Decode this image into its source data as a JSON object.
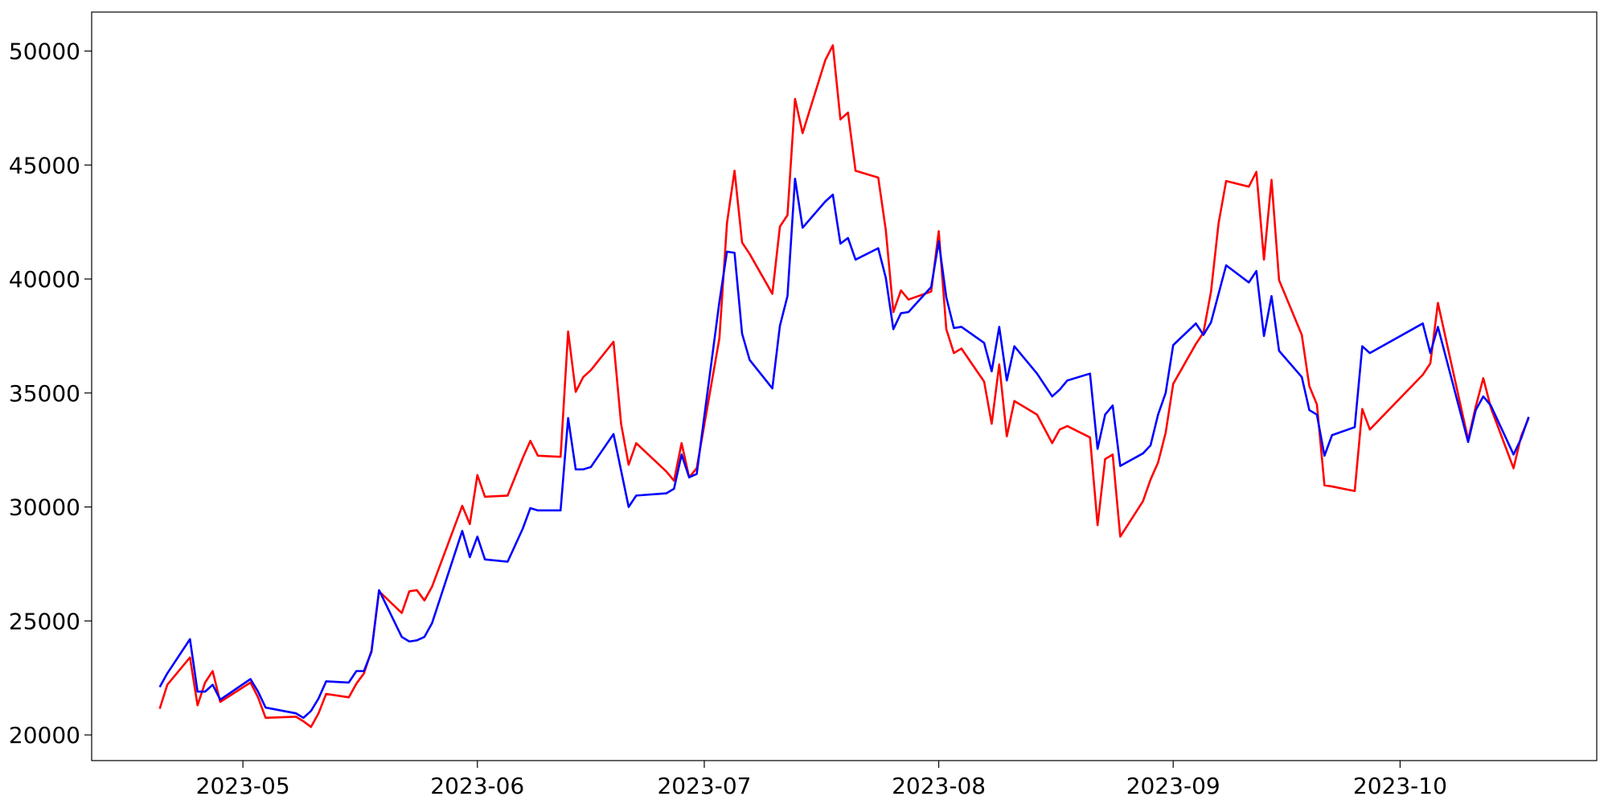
{
  "chart_data": {
    "type": "line",
    "x": [
      "2023-04-20",
      "2023-04-21",
      "2023-04-24",
      "2023-04-25",
      "2023-04-26",
      "2023-04-27",
      "2023-04-28",
      "2023-05-02",
      "2023-05-03",
      "2023-05-04",
      "2023-05-08",
      "2023-05-09",
      "2023-05-10",
      "2023-05-11",
      "2023-05-12",
      "2023-05-15",
      "2023-05-16",
      "2023-05-17",
      "2023-05-18",
      "2023-05-19",
      "2023-05-22",
      "2023-05-23",
      "2023-05-24",
      "2023-05-25",
      "2023-05-26",
      "2023-05-30",
      "2023-05-31",
      "2023-06-01",
      "2023-06-02",
      "2023-06-05",
      "2023-06-07",
      "2023-06-08",
      "2023-06-09",
      "2023-06-12",
      "2023-06-13",
      "2023-06-14",
      "2023-06-15",
      "2023-06-16",
      "2023-06-19",
      "2023-06-20",
      "2023-06-21",
      "2023-06-22",
      "2023-06-26",
      "2023-06-27",
      "2023-06-28",
      "2023-06-29",
      "2023-06-30",
      "2023-07-03",
      "2023-07-04",
      "2023-07-05",
      "2023-07-06",
      "2023-07-07",
      "2023-07-10",
      "2023-07-11",
      "2023-07-12",
      "2023-07-13",
      "2023-07-14",
      "2023-07-17",
      "2023-07-18",
      "2023-07-19",
      "2023-07-20",
      "2023-07-21",
      "2023-07-24",
      "2023-07-25",
      "2023-07-26",
      "2023-07-27",
      "2023-07-28",
      "2023-07-31",
      "2023-08-01",
      "2023-08-02",
      "2023-08-03",
      "2023-08-04",
      "2023-08-07",
      "2023-08-08",
      "2023-08-09",
      "2023-08-10",
      "2023-08-11",
      "2023-08-14",
      "2023-08-16",
      "2023-08-17",
      "2023-08-18",
      "2023-08-21",
      "2023-08-22",
      "2023-08-23",
      "2023-08-24",
      "2023-08-25",
      "2023-08-28",
      "2023-08-29",
      "2023-08-30",
      "2023-08-31",
      "2023-09-01",
      "2023-09-04",
      "2023-09-05",
      "2023-09-06",
      "2023-09-07",
      "2023-09-08",
      "2023-09-11",
      "2023-09-12",
      "2023-09-13",
      "2023-09-14",
      "2023-09-15",
      "2023-09-18",
      "2023-09-19",
      "2023-09-20",
      "2023-09-21",
      "2023-09-22",
      "2023-09-25",
      "2023-09-26",
      "2023-09-27",
      "2023-10-04",
      "2023-10-05",
      "2023-10-06",
      "2023-10-10",
      "2023-10-11",
      "2023-10-12",
      "2023-10-13",
      "2023-10-16",
      "2023-10-17",
      "2023-10-18"
    ],
    "series": [
      {
        "color": "#ff0000",
        "values": [
          21150,
          22200,
          23400,
          21300,
          22300,
          22800,
          21450,
          22300,
          21650,
          20750,
          20800,
          20600,
          20350,
          20950,
          21800,
          21650,
          22250,
          22700,
          23700,
          26300,
          25350,
          26300,
          26350,
          25900,
          26500,
          30050,
          29250,
          31400,
          30450,
          30500,
          32150,
          32900,
          32250,
          32200,
          37700,
          35050,
          35700,
          36000,
          37250,
          33650,
          31850,
          32800,
          31550,
          31150,
          32800,
          31300,
          31700,
          37400,
          42450,
          44750,
          41600,
          41100,
          39350,
          42300,
          42800,
          47900,
          46400,
          49600,
          50250,
          47000,
          47300,
          44750,
          44450,
          42150,
          38550,
          39500,
          39100,
          39450,
          42100,
          37800,
          36750,
          36950,
          35500,
          33650,
          36250,
          33100,
          34650,
          34050,
          32800,
          33400,
          33550,
          33050,
          29200,
          32100,
          32300,
          28700,
          30250,
          31200,
          31950,
          33250,
          35400,
          37150,
          37650,
          39450,
          42450,
          44300,
          44050,
          44700,
          40850,
          44350,
          39950,
          37550,
          35300,
          34500,
          30950,
          30900,
          30700,
          34300,
          33400,
          35800,
          36300,
          38950,
          32950,
          34400,
          35650,
          34350,
          31700,
          33100,
          33900
        ]
      },
      {
        "color": "#0000ff",
        "values": [
          22100,
          22700,
          24200,
          21900,
          21900,
          22200,
          21550,
          22450,
          21900,
          21200,
          20950,
          20750,
          21050,
          21600,
          22350,
          22300,
          22800,
          22800,
          23650,
          26350,
          24300,
          24100,
          24150,
          24300,
          24900,
          28950,
          27800,
          28700,
          27700,
          27600,
          29050,
          29950,
          29850,
          29850,
          33900,
          31650,
          31650,
          31750,
          33200,
          31600,
          30000,
          30500,
          30600,
          30800,
          32300,
          31300,
          31450,
          39000,
          41200,
          41150,
          37600,
          36450,
          35200,
          37950,
          39250,
          44400,
          42250,
          43400,
          43700,
          41550,
          41800,
          40850,
          41350,
          40050,
          37800,
          38500,
          38550,
          39650,
          41650,
          39200,
          37850,
          37900,
          37200,
          35950,
          37900,
          35550,
          37050,
          35850,
          34850,
          35150,
          35550,
          35850,
          32550,
          34050,
          34450,
          31800,
          32350,
          32700,
          34050,
          35000,
          37100,
          38050,
          37550,
          38100,
          39350,
          40600,
          39850,
          40350,
          37500,
          39250,
          36850,
          35700,
          34250,
          34050,
          32250,
          33150,
          33500,
          37050,
          36750,
          38050,
          36750,
          37900,
          32850,
          34250,
          34850,
          34450,
          32300,
          33000,
          33950
        ]
      }
    ],
    "xlim": [
      "2023-04-11",
      "2023-10-27"
    ],
    "xticks": [
      {
        "value": "2023-05-01",
        "label": "2023-05"
      },
      {
        "value": "2023-06-01",
        "label": "2023-06"
      },
      {
        "value": "2023-07-01",
        "label": "2023-07"
      },
      {
        "value": "2023-08-01",
        "label": "2023-08"
      },
      {
        "value": "2023-09-01",
        "label": "2023-09"
      },
      {
        "value": "2023-10-01",
        "label": "2023-10"
      }
    ],
    "ylim": [
      18875,
      51710
    ],
    "yticks": [
      20000,
      25000,
      30000,
      35000,
      40000,
      45000,
      50000
    ],
    "grid": false
  }
}
